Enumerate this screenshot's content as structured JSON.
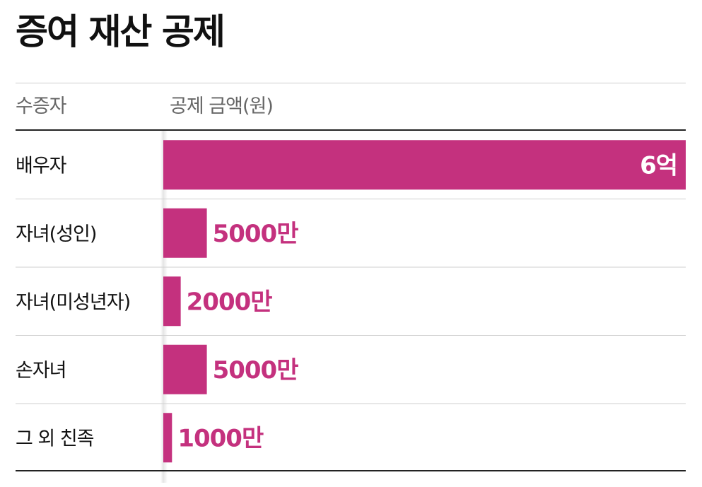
{
  "chart_data": {
    "type": "bar",
    "orientation": "horizontal",
    "title": "증여 재산 공제",
    "category_header": "수증자",
    "value_header": "공제 금액(원)",
    "categories": [
      "배우자",
      "자녀(성인)",
      "자녀(미성년자)",
      "손자녀",
      "그 외 친족"
    ],
    "values": [
      600000000,
      50000000,
      20000000,
      50000000,
      10000000
    ],
    "value_labels": [
      "6억",
      "5000만",
      "2000만",
      "5000만",
      "1000만"
    ],
    "xlim": [
      0,
      600000000
    ],
    "grid": false,
    "legend": "none",
    "bar_color": "#c4317e",
    "label_color_outside": "#c4317e",
    "label_color_inside": "#ffffff"
  }
}
